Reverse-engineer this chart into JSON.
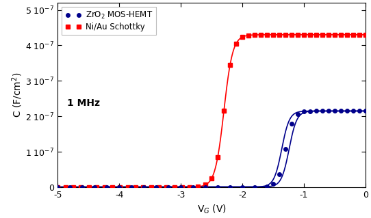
{
  "title": "",
  "xlabel": "V$_G$ (V)",
  "ylabel": "C (F/cm$^2$)",
  "annotation": "1 MHz",
  "xlim": [
    -5,
    0
  ],
  "ylim": [
    0,
    5.2e-07
  ],
  "xticks": [
    -5,
    -4,
    -3,
    -2,
    -1,
    0
  ],
  "yticks": [
    0,
    1e-07,
    2e-07,
    3e-07,
    4e-07,
    5e-07
  ],
  "ytick_labels": [
    "0",
    "1 10$^{-7}$",
    "2 10$^{-7}$",
    "3 10$^{-7}$",
    "4 10$^{-7}$",
    "5 10$^{-7}$"
  ],
  "schottky_color": "#FF0000",
  "moshemt_color": "#00008B",
  "schottky_label": "Ni/Au Schottky",
  "moshemt_label": "ZrO$_2$ MOS-HEMT",
  "schottky_Vth": -2.3,
  "schottky_Cmax": 4.3e-07,
  "schottky_Cmin": 5e-10,
  "schottky_k": 14.0,
  "moshemt_Vth": -1.3,
  "moshemt_Cmax": 2.15e-07,
  "moshemt_Cmin": 8e-10,
  "moshemt_k": 16.0,
  "moshemt_hysteresis": 0.12,
  "background_color": "#ffffff",
  "legend_fontsize": 8.5,
  "label_fontsize": 10,
  "tick_fontsize": 9
}
